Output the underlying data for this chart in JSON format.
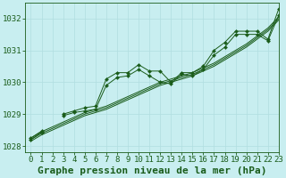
{
  "title": "Graphe pression niveau de la mer (hPa)",
  "bg_color": "#c8eef0",
  "line_color": "#1a5c1a",
  "grid_color": "#b0dde0",
  "xlim": [
    -0.5,
    23
  ],
  "ylim": [
    1027.8,
    1032.5
  ],
  "yticks": [
    1028,
    1029,
    1030,
    1031,
    1032
  ],
  "xticks": [
    0,
    1,
    2,
    3,
    4,
    5,
    6,
    7,
    8,
    9,
    10,
    11,
    12,
    13,
    14,
    15,
    16,
    17,
    18,
    19,
    20,
    21,
    22,
    23
  ],
  "smooth_series": [
    [
      1028.25,
      1028.45,
      1028.6,
      1028.75,
      1028.9,
      1029.05,
      1029.15,
      1029.25,
      1029.4,
      1029.55,
      1029.7,
      1029.85,
      1030.0,
      1030.1,
      1030.2,
      1030.3,
      1030.45,
      1030.6,
      1030.8,
      1031.0,
      1031.2,
      1031.45,
      1031.7,
      1032.05
    ],
    [
      1028.2,
      1028.4,
      1028.55,
      1028.7,
      1028.85,
      1029.0,
      1029.1,
      1029.2,
      1029.35,
      1029.5,
      1029.65,
      1029.8,
      1029.95,
      1030.05,
      1030.15,
      1030.25,
      1030.4,
      1030.55,
      1030.75,
      1030.95,
      1031.15,
      1031.4,
      1031.65,
      1032.0
    ],
    [
      1028.15,
      1028.35,
      1028.5,
      1028.65,
      1028.8,
      1028.95,
      1029.05,
      1029.15,
      1029.3,
      1029.45,
      1029.6,
      1029.75,
      1029.9,
      1030.0,
      1030.1,
      1030.2,
      1030.35,
      1030.5,
      1030.7,
      1030.9,
      1031.1,
      1031.35,
      1031.6,
      1031.95
    ]
  ],
  "marker_series": [
    [
      1028.25,
      1028.47,
      null,
      1029.0,
      1029.1,
      1029.2,
      1029.25,
      1030.1,
      1030.3,
      1030.3,
      1030.55,
      1030.35,
      1030.35,
      1030.0,
      1030.3,
      1030.3,
      1030.5,
      1031.0,
      1031.25,
      1031.6,
      1031.6,
      1031.6,
      1031.35,
      1032.3
    ],
    [
      1028.2,
      1028.43,
      null,
      1028.95,
      1029.05,
      1029.1,
      1029.15,
      1029.9,
      1030.15,
      1030.2,
      1030.4,
      1030.2,
      1030.0,
      1029.95,
      1030.25,
      1030.2,
      1030.4,
      1030.85,
      1031.1,
      1031.5,
      1031.5,
      1031.5,
      1031.3,
      1032.1
    ]
  ],
  "title_fontsize": 8,
  "tick_fontsize": 6.5
}
